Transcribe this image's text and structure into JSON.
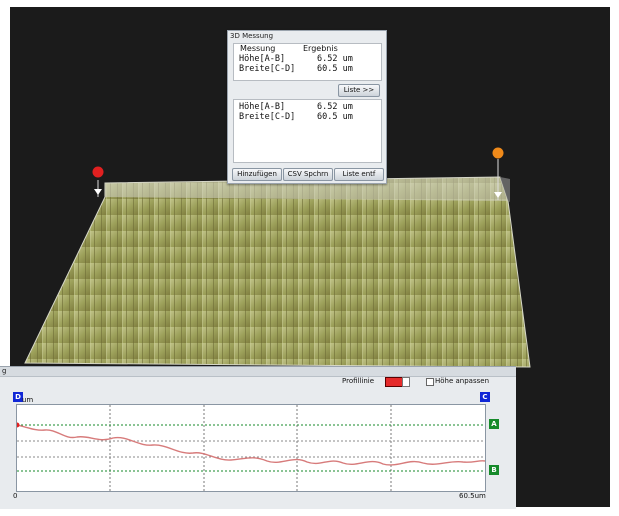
{
  "dialog": {
    "title": "3D Messung",
    "headers": [
      "Messung",
      "Ergebnis"
    ],
    "rows": [
      {
        "label": "Höhe[A-B]",
        "value": "6.52 um"
      },
      {
        "label": "Breite[C-D]",
        "value": "60.5 um"
      }
    ],
    "liste_button": "Liste >>",
    "list_rows": [
      {
        "label": "Höhe[A-B]",
        "value": "6.52 um"
      },
      {
        "label": "Breite[C-D]",
        "value": "60.5 um"
      }
    ],
    "buttons": {
      "add": "Hinzufügen",
      "csv": "CSV Spchrn",
      "delete": "Liste entf"
    }
  },
  "profile_panel": {
    "title_fragment": "g",
    "profile_line_label": "Profillinie",
    "profile_color": "#e52a2a",
    "fit_height_label": "Höhe anpassen",
    "left_unit": "um",
    "right_value": "60.5um",
    "left_bottom": "0",
    "markers": {
      "A": "A",
      "B": "B",
      "C": "C",
      "D": "D"
    }
  },
  "colors": {
    "scene_bg": "#1b1b1b",
    "accent_red": "#e12020",
    "accent_orange": "#f08a1a",
    "marker_green": "#168a2a",
    "marker_blue": "#1027d6"
  }
}
